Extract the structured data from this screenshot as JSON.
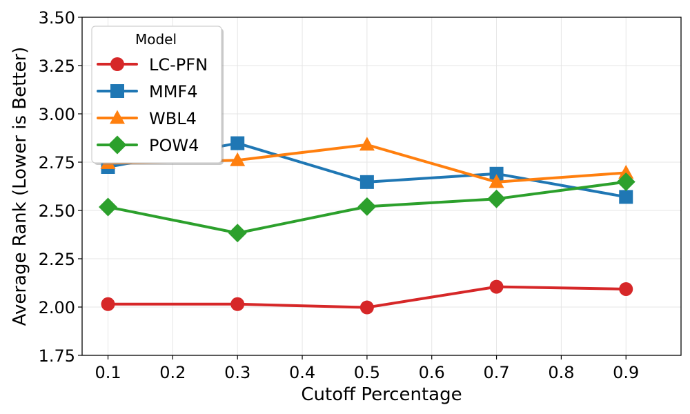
{
  "chart_data": {
    "type": "line",
    "title": "",
    "xlabel": "Cutoff Percentage",
    "ylabel": "Average Rank (Lower is Better)",
    "xlim": [
      0.06,
      0.985
    ],
    "ylim": [
      1.75,
      3.5
    ],
    "x_ticks": [
      "0.1",
      "0.2",
      "0.3",
      "0.4",
      "0.5",
      "0.6",
      "0.7",
      "0.8",
      "0.9"
    ],
    "y_ticks": [
      "1.75",
      "2.00",
      "2.25",
      "2.50",
      "2.75",
      "3.00",
      "3.25",
      "3.50"
    ],
    "grid": true,
    "legend": {
      "title": "Model",
      "placement": "top-left"
    },
    "x": [
      0.1,
      0.3,
      0.5,
      0.7,
      0.9
    ],
    "series": [
      {
        "name": "LC-PFN",
        "color": "#d62728",
        "marker": "circle",
        "values": [
          2.015,
          2.015,
          1.998,
          2.105,
          2.093
        ]
      },
      {
        "name": "MMF4",
        "color": "#1f77b4",
        "marker": "square",
        "values": [
          2.725,
          2.848,
          2.647,
          2.69,
          2.57
        ]
      },
      {
        "name": "WBL4",
        "color": "#ff7f0e",
        "marker": "triangle",
        "values": [
          2.745,
          2.76,
          2.84,
          2.647,
          2.695
        ]
      },
      {
        "name": "POW4",
        "color": "#2ca02c",
        "marker": "diamond",
        "values": [
          2.518,
          2.383,
          2.52,
          2.56,
          2.648
        ]
      }
    ]
  }
}
